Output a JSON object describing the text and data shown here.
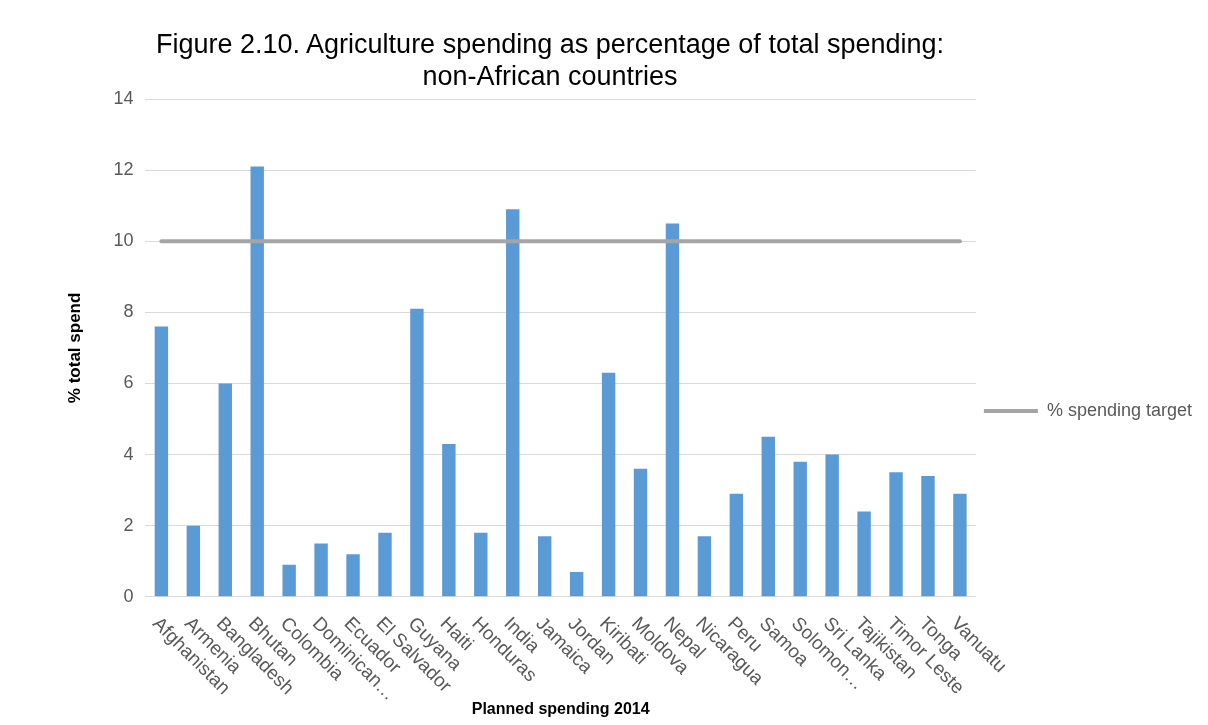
{
  "chart_data": {
    "type": "bar",
    "title": "Figure 2.10. Agriculture spending as percentage of total spending: non-African countries",
    "xlabel": "Planned spending 2014",
    "ylabel": "% total spend",
    "categories": [
      "Afghanistan",
      "Armenia",
      "Bangladesh",
      "Bhutan",
      "Colombia",
      "Dominican…",
      "Ecuador",
      "El Salvador",
      "Guyana",
      "Haiti",
      "Honduras",
      "India",
      "Jamaica",
      "Jordan",
      "Kiribati",
      "Moldova",
      "Nepal",
      "Nicaragua",
      "Peru",
      "Samoa",
      "Solomon…",
      "Sri Lanka",
      "Tajikistan",
      "Timor Leste",
      "Tonga",
      "Vanuatu"
    ],
    "series": [
      {
        "color": "#5b9bd5",
        "values": [
          7.6,
          2.0,
          6.0,
          12.1,
          0.9,
          1.5,
          1.2,
          1.8,
          8.1,
          4.3,
          1.8,
          10.9,
          1.7,
          0.7,
          6.3,
          3.6,
          10.5,
          1.7,
          2.9,
          4.5,
          3.8,
          4.0,
          2.4,
          3.5,
          3.4,
          2.9
        ]
      },
      {
        "type": "line",
        "name": "% spending target",
        "color": "#a5a5a5",
        "values": [
          10,
          10,
          10,
          10,
          10,
          10,
          10,
          10,
          10,
          10,
          10,
          10,
          10,
          10,
          10,
          10,
          10,
          10,
          10,
          10,
          10,
          10,
          10,
          10,
          10,
          10
        ]
      }
    ],
    "ylim": [
      0,
      14
    ],
    "yticks": [
      0,
      2,
      4,
      6,
      8,
      10,
      12,
      14
    ],
    "grid": "y",
    "legend": "right"
  }
}
